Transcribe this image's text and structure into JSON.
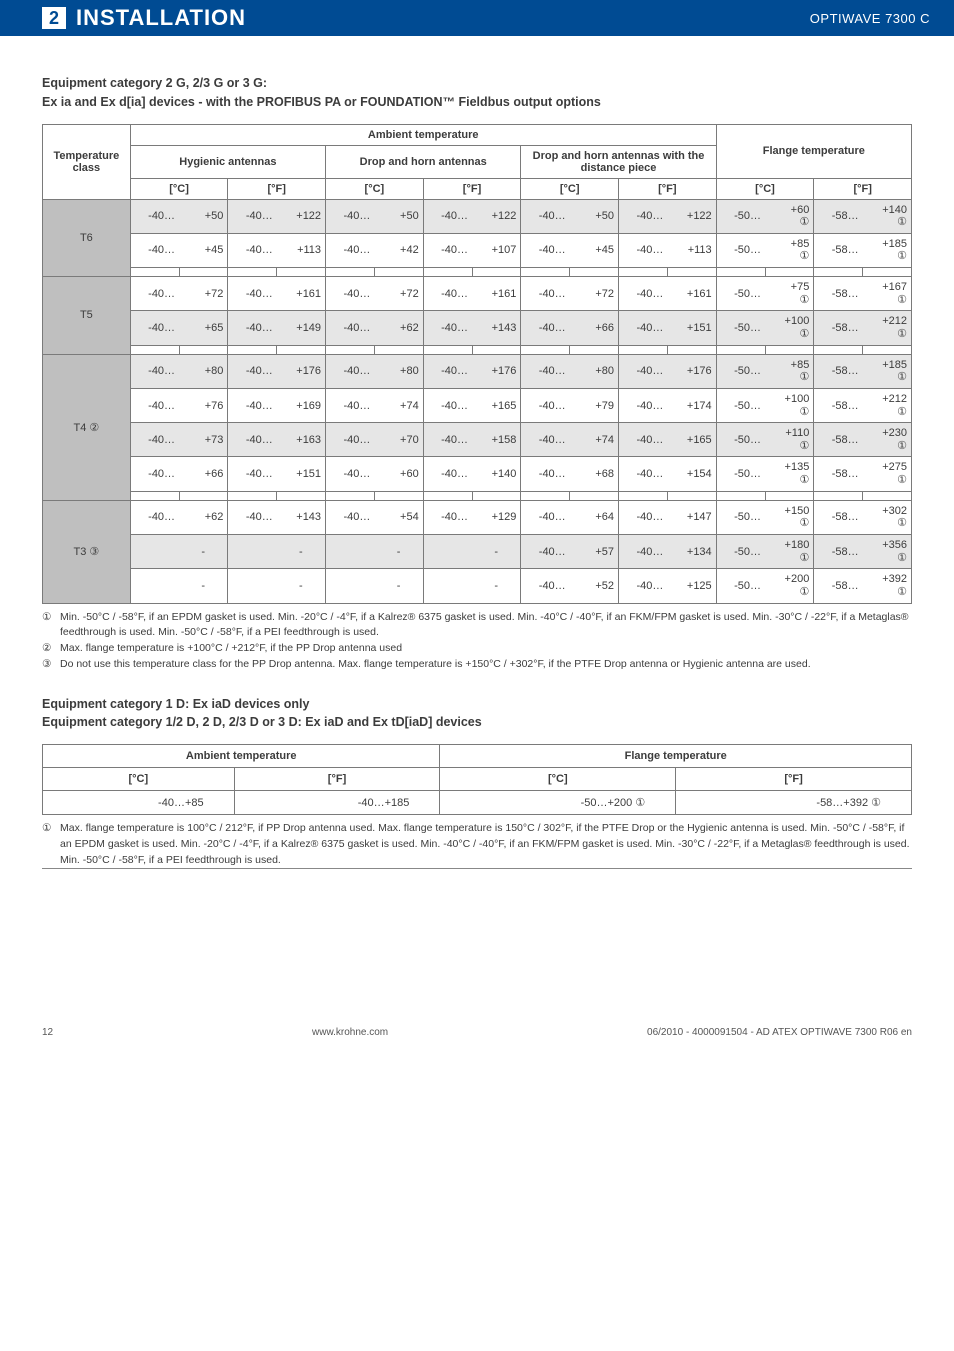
{
  "header": {
    "section_num": "2",
    "section_title": "INSTALLATION",
    "product": "OPTIWAVE 7300 C"
  },
  "heading1_l1": "Equipment category 2 G, 2/3 G or 3 G:",
  "heading1_l2": "Ex ia and Ex d[ia] devices - with the PROFIBUS PA or FOUNDATION™ Fieldbus output options",
  "t1": {
    "h_tc": "Temperature class",
    "h_amb": "Ambient temperature",
    "h_fl": "Flange temperature",
    "h_hyg": "Hygienic antennas",
    "h_dh": "Drop and horn antennas",
    "h_dhd": "Drop and horn antennas with the distance piece",
    "unit_c": "[°C]",
    "unit_f": "[°F]",
    "rows": [
      {
        "cls": "T6",
        "sub": [
          {
            "shade": "dark",
            "hyg_c": [
              "-40",
              "+50"
            ],
            "hyg_f": [
              "-40",
              "+122"
            ],
            "dh_c": [
              "-40",
              "+50"
            ],
            "dh_f": [
              "-40",
              "+122"
            ],
            "dhd_c": [
              "-40",
              "+50"
            ],
            "dhd_f": [
              "-40",
              "+122"
            ],
            "fl_c": [
              "-50",
              "+60 ①"
            ],
            "fl_f": [
              "-58",
              "+140 ①"
            ]
          },
          {
            "shade": "light",
            "hyg_c": [
              "-40",
              "+45"
            ],
            "hyg_f": [
              "-40",
              "+113"
            ],
            "dh_c": [
              "-40",
              "+42"
            ],
            "dh_f": [
              "-40",
              "+107"
            ],
            "dhd_c": [
              "-40",
              "+45"
            ],
            "dhd_f": [
              "-40",
              "+113"
            ],
            "fl_c": [
              "-50",
              "+85 ①"
            ],
            "fl_f": [
              "-58",
              "+185 ①"
            ]
          }
        ]
      },
      {
        "cls": "T5",
        "sub": [
          {
            "shade": "light",
            "hyg_c": [
              "-40",
              "+72"
            ],
            "hyg_f": [
              "-40",
              "+161"
            ],
            "dh_c": [
              "-40",
              "+72"
            ],
            "dh_f": [
              "-40",
              "+161"
            ],
            "dhd_c": [
              "-40",
              "+72"
            ],
            "dhd_f": [
              "-40",
              "+161"
            ],
            "fl_c": [
              "-50",
              "+75 ①"
            ],
            "fl_f": [
              "-58",
              "+167 ①"
            ]
          },
          {
            "shade": "dark",
            "hyg_c": [
              "-40",
              "+65"
            ],
            "hyg_f": [
              "-40",
              "+149"
            ],
            "dh_c": [
              "-40",
              "+62"
            ],
            "dh_f": [
              "-40",
              "+143"
            ],
            "dhd_c": [
              "-40",
              "+66"
            ],
            "dhd_f": [
              "-40",
              "+151"
            ],
            "fl_c": [
              "-50",
              "+100 ①"
            ],
            "fl_f": [
              "-58",
              "+212 ①"
            ]
          }
        ]
      },
      {
        "cls": "T4 ②",
        "sub": [
          {
            "shade": "dark",
            "hyg_c": [
              "-40",
              "+80"
            ],
            "hyg_f": [
              "-40",
              "+176"
            ],
            "dh_c": [
              "-40",
              "+80"
            ],
            "dh_f": [
              "-40",
              "+176"
            ],
            "dhd_c": [
              "-40",
              "+80"
            ],
            "dhd_f": [
              "-40",
              "+176"
            ],
            "fl_c": [
              "-50",
              "+85 ①"
            ],
            "fl_f": [
              "-58",
              "+185 ①"
            ]
          },
          {
            "shade": "light",
            "hyg_c": [
              "-40",
              "+76"
            ],
            "hyg_f": [
              "-40",
              "+169"
            ],
            "dh_c": [
              "-40",
              "+74"
            ],
            "dh_f": [
              "-40",
              "+165"
            ],
            "dhd_c": [
              "-40",
              "+79"
            ],
            "dhd_f": [
              "-40",
              "+174"
            ],
            "fl_c": [
              "-50",
              "+100 ①"
            ],
            "fl_f": [
              "-58",
              "+212 ①"
            ]
          },
          {
            "shade": "dark",
            "hyg_c": [
              "-40",
              "+73"
            ],
            "hyg_f": [
              "-40",
              "+163"
            ],
            "dh_c": [
              "-40",
              "+70"
            ],
            "dh_f": [
              "-40",
              "+158"
            ],
            "dhd_c": [
              "-40",
              "+74"
            ],
            "dhd_f": [
              "-40",
              "+165"
            ],
            "fl_c": [
              "-50",
              "+110 ①"
            ],
            "fl_f": [
              "-58",
              "+230 ①"
            ]
          },
          {
            "shade": "light",
            "hyg_c": [
              "-40",
              "+66"
            ],
            "hyg_f": [
              "-40",
              "+151"
            ],
            "dh_c": [
              "-40",
              "+60"
            ],
            "dh_f": [
              "-40",
              "+140"
            ],
            "dhd_c": [
              "-40",
              "+68"
            ],
            "dhd_f": [
              "-40",
              "+154"
            ],
            "fl_c": [
              "-50",
              "+135 ①"
            ],
            "fl_f": [
              "-58",
              "+275 ①"
            ]
          }
        ]
      },
      {
        "cls": "T3 ③",
        "sub": [
          {
            "shade": "light",
            "hyg_c": [
              "-40",
              "+62"
            ],
            "hyg_f": [
              "-40",
              "+143"
            ],
            "dh_c": [
              "-40",
              "+54"
            ],
            "dh_f": [
              "-40",
              "+129"
            ],
            "dhd_c": [
              "-40",
              "+64"
            ],
            "dhd_f": [
              "-40",
              "+147"
            ],
            "fl_c": [
              "-50",
              "+150 ①"
            ],
            "fl_f": [
              "-58",
              "+302 ①"
            ]
          },
          {
            "shade": "dark",
            "hyg_c": [
              "",
              ""
            ],
            "hyg_f": [
              "",
              ""
            ],
            "dh_c": [
              "",
              ""
            ],
            "dh_f": [
              "",
              ""
            ],
            "dhd_c": [
              "-40",
              "+57"
            ],
            "dhd_f": [
              "-40",
              "+134"
            ],
            "fl_c": [
              "-50",
              "+180 ①"
            ],
            "fl_f": [
              "-58",
              "+356 ①"
            ]
          },
          {
            "shade": "light",
            "hyg_c": [
              "",
              ""
            ],
            "hyg_f": [
              "",
              ""
            ],
            "dh_c": [
              "",
              ""
            ],
            "dh_f": [
              "",
              ""
            ],
            "dhd_c": [
              "-40",
              "+52"
            ],
            "dhd_f": [
              "-40",
              "+125"
            ],
            "fl_c": [
              "-50",
              "+200 ①"
            ],
            "fl_f": [
              "-58",
              "+392 ①"
            ]
          }
        ]
      }
    ]
  },
  "notes1": {
    "n1": "Min. -50°C / -58°F, if an EPDM gasket is used. Min. -20°C / -4°F, if a Kalrez® 6375 gasket is used. Min. -40°C / -40°F, if an FKM/FPM gasket is used. Min. -30°C / -22°F, if a Metaglas® feedthrough is used. Min. -50°C / -58°F, if a PEI feedthrough is used.",
    "n2": "Max. flange temperature is +100°C / +212°F, if the PP Drop antenna used",
    "n3": "Do not use this temperature class for the PP Drop antenna. Max. flange temperature is +150°C / +302°F, if the PTFE Drop antenna or Hygienic antenna are used."
  },
  "heading2_l1": "Equipment category 1 D: Ex iaD devices only",
  "heading2_l2": "Equipment category 1/2 D, 2 D, 2/3 D or 3 D: Ex iaD and Ex tD[iaD] devices",
  "t2": {
    "h_amb": "Ambient temperature",
    "h_fl": "Flange temperature",
    "unit_c": "[°C]",
    "unit_f": "[°F]",
    "amb_c": "-40…+85",
    "amb_f": "-40…+185",
    "fl_c": "-50…+200 ①",
    "fl_f": "-58…+392 ①"
  },
  "notes2": {
    "n1": "Max. flange temperature is 100°C / 212°F, if PP Drop antenna used. Max. flange temperature is 150°C / 302°F, if the PTFE Drop or the Hygienic antenna is used. Min. -50°C / -58°F, if an EPDM gasket is used. Min. -20°C / -4°F, if a Kalrez® 6375 gasket is used. Min. -40°C / -40°F, if an FKM/FPM gasket is used. Min. -30°C / -22°F, if a Metaglas® feedthrough is used. Min. -50°C / -58°F, if a PEI feedthrough is used."
  },
  "footer": {
    "page": "12",
    "site": "www.krohne.com",
    "doc": "06/2010 - 4000091504 - AD ATEX OPTIWAVE 7300 R06 en"
  }
}
